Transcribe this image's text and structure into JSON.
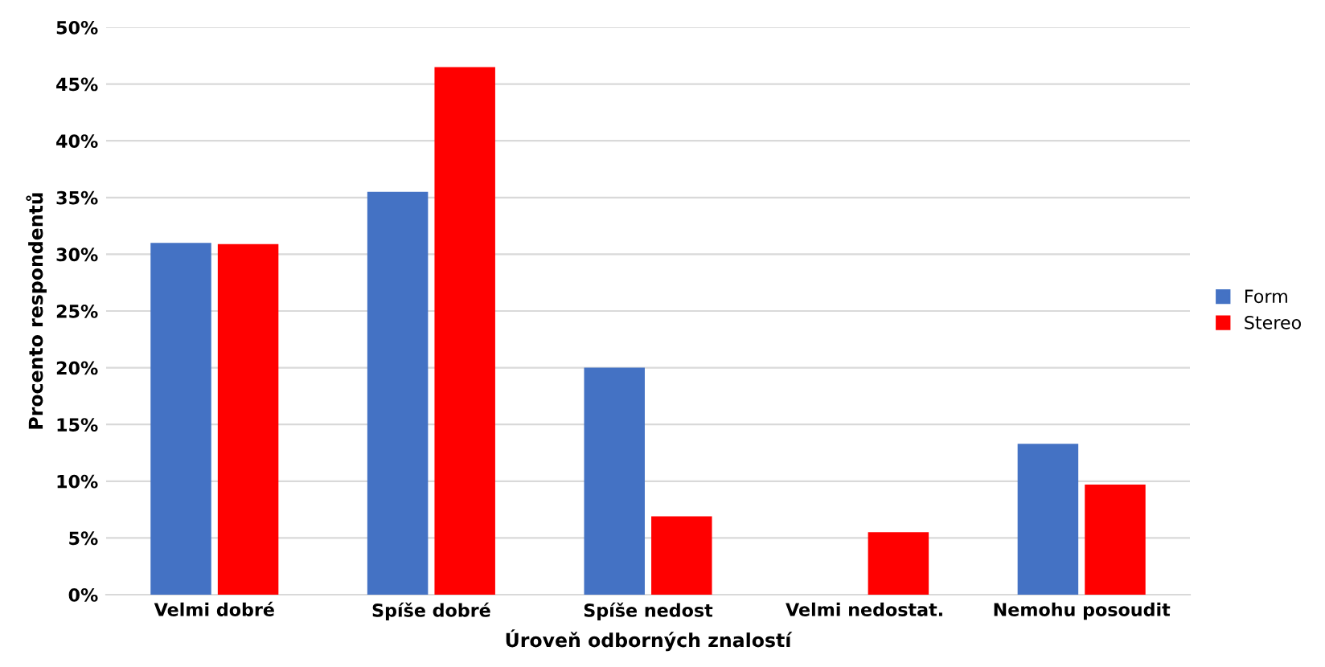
{
  "chart_data": {
    "type": "bar",
    "xlabel": "Úroveň odborných znalostí",
    "ylabel": "Procento respondentů",
    "categories": [
      "Velmi dobré",
      "Spíše dobré",
      "Spíše nedost",
      "Velmi nedostat.",
      "Nemohu posoudit"
    ],
    "series": [
      {
        "name": "Form",
        "color": "#4472c4",
        "values": [
          31.0,
          35.5,
          20.0,
          0,
          13.3
        ]
      },
      {
        "name": "Stereo",
        "color": "#ff0000",
        "values": [
          30.9,
          46.5,
          6.9,
          5.5,
          9.7
        ]
      }
    ],
    "ylim": [
      0,
      50
    ],
    "yticks": [
      {
        "value": 0,
        "label": "0%"
      },
      {
        "value": 5,
        "label": "5%"
      },
      {
        "value": 10,
        "label": "10%"
      },
      {
        "value": 15,
        "label": "15%"
      },
      {
        "value": 20,
        "label": "20%"
      },
      {
        "value": 25,
        "label": "25%"
      },
      {
        "value": 30,
        "label": "30%"
      },
      {
        "value": 35,
        "label": "35%"
      },
      {
        "value": 40,
        "label": "40%"
      },
      {
        "value": 45,
        "label": "45%"
      },
      {
        "value": 50,
        "label": "50%"
      }
    ],
    "grid": "y",
    "legend": "right"
  }
}
